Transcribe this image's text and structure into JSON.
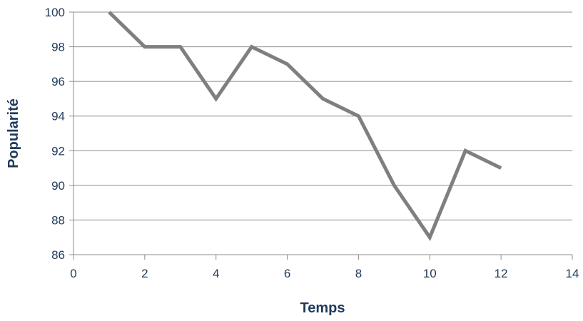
{
  "chart_data": {
    "type": "line",
    "title": "",
    "xlabel": "Temps",
    "ylabel": "Popularité",
    "xlim": [
      0,
      14
    ],
    "ylim": [
      86,
      100
    ],
    "x_ticks": [
      0,
      2,
      4,
      6,
      8,
      10,
      12,
      14
    ],
    "y_ticks": [
      86,
      88,
      90,
      92,
      94,
      96,
      98,
      100
    ],
    "grid": true,
    "legend": "none",
    "series": [
      {
        "color": "#7f7f7f",
        "x": [
          1,
          2,
          3,
          4,
          5,
          6,
          7,
          8,
          9,
          10,
          11,
          12
        ],
        "y": [
          100,
          98,
          98,
          95,
          98,
          97,
          95,
          94,
          90,
          87,
          92,
          91
        ]
      }
    ],
    "colors": {
      "axis_text": "#1f3a5a",
      "gridline": "#8c8c8c",
      "axis_line": "#8c8c8c"
    }
  }
}
